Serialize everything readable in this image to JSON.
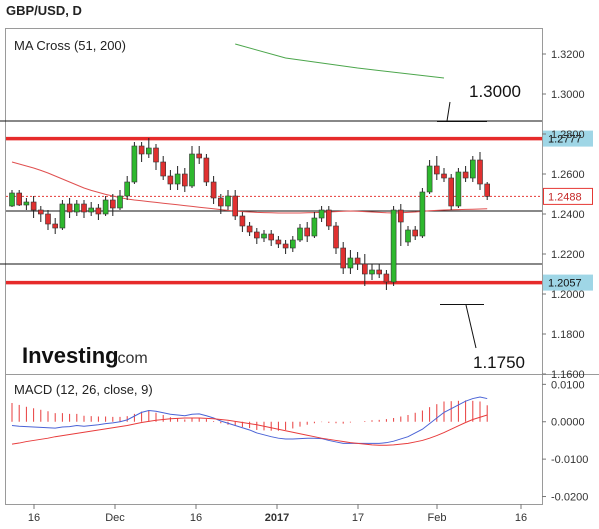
{
  "header": {
    "title": "GBP/USD, D"
  },
  "price_panel": {
    "indicator_label": "MA Cross (51, 200)",
    "logo_text": "Investing",
    "logo_suffix": ".com",
    "ma_label": "",
    "annotations": [
      "1.3000",
      "1.1750"
    ]
  },
  "macd_panel": {
    "label": "MACD (12, 26, close, 9)"
  },
  "colors": {
    "bull": "#2eb82e",
    "bear": "#e03030",
    "resistance_line": "#e62b2b",
    "ma_slow": "#4ca64c",
    "ma_fast": "#e05050",
    "macd_line": "#4a63d6",
    "macd_signal": "#e83c3c",
    "price_tag_bg": "#9fd6e6",
    "current_tag_border": "#e53935"
  },
  "chart_data": [
    {
      "type": "candlestick",
      "title": "GBP/USD, D",
      "x_ticks": [
        "16",
        "Dec",
        "16",
        "2017",
        "17",
        "Feb",
        "16"
      ],
      "y_ticks": [
        "1.3200",
        "1.3000",
        "1.2800",
        "1.2600",
        "1.2400",
        "1.2200",
        "1.2000",
        "1.1800",
        "1.1600"
      ],
      "ylim": [
        1.16,
        1.333
      ],
      "candles": [
        [
          1.244,
          1.2505,
          1.2435,
          1.252
        ],
        [
          1.2505,
          1.2445,
          1.244,
          1.252
        ],
        [
          1.2445,
          1.246,
          1.242,
          1.248
        ],
        [
          1.246,
          1.242,
          1.238,
          1.249
        ],
        [
          1.242,
          1.24,
          1.236,
          1.244
        ],
        [
          1.24,
          1.235,
          1.232,
          1.242
        ],
        [
          1.235,
          1.233,
          1.23,
          1.238
        ],
        [
          1.233,
          1.245,
          1.232,
          1.247
        ],
        [
          1.245,
          1.241,
          1.238,
          1.248
        ],
        [
          1.241,
          1.245,
          1.239,
          1.247
        ],
        [
          1.245,
          1.241,
          1.238,
          1.247
        ],
        [
          1.241,
          1.243,
          1.239,
          1.246
        ],
        [
          1.243,
          1.24,
          1.237,
          1.245
        ],
        [
          1.24,
          1.247,
          1.239,
          1.249
        ],
        [
          1.247,
          1.243,
          1.239,
          1.25
        ],
        [
          1.243,
          1.249,
          1.242,
          1.252
        ],
        [
          1.249,
          1.256,
          1.247,
          1.259
        ],
        [
          1.256,
          1.274,
          1.255,
          1.276
        ],
        [
          1.274,
          1.27,
          1.266,
          1.276
        ],
        [
          1.27,
          1.273,
          1.268,
          1.278
        ],
        [
          1.273,
          1.266,
          1.262,
          1.275
        ],
        [
          1.266,
          1.259,
          1.257,
          1.269
        ],
        [
          1.259,
          1.255,
          1.252,
          1.262
        ],
        [
          1.255,
          1.26,
          1.252,
          1.264
        ],
        [
          1.26,
          1.254,
          1.251,
          1.263
        ],
        [
          1.254,
          1.27,
          1.253,
          1.274
        ],
        [
          1.27,
          1.268,
          1.265,
          1.274
        ],
        [
          1.268,
          1.256,
          1.254,
          1.27
        ],
        [
          1.256,
          1.248,
          1.245,
          1.259
        ],
        [
          1.248,
          1.244,
          1.24,
          1.25
        ],
        [
          1.244,
          1.249,
          1.242,
          1.252
        ],
        [
          1.249,
          1.239,
          1.237,
          1.252
        ],
        [
          1.239,
          1.234,
          1.231,
          1.241
        ],
        [
          1.234,
          1.231,
          1.229,
          1.236
        ],
        [
          1.231,
          1.228,
          1.225,
          1.233
        ],
        [
          1.228,
          1.23,
          1.226,
          1.232
        ],
        [
          1.23,
          1.227,
          1.224,
          1.232
        ],
        [
          1.227,
          1.225,
          1.223,
          1.229
        ],
        [
          1.225,
          1.223,
          1.22,
          1.227
        ],
        [
          1.223,
          1.227,
          1.221,
          1.229
        ],
        [
          1.227,
          1.233,
          1.226,
          1.235
        ],
        [
          1.233,
          1.229,
          1.226,
          1.236
        ],
        [
          1.229,
          1.238,
          1.228,
          1.241
        ],
        [
          1.238,
          1.242,
          1.236,
          1.244
        ],
        [
          1.242,
          1.234,
          1.232,
          1.244
        ],
        [
          1.234,
          1.223,
          1.22,
          1.236
        ],
        [
          1.223,
          1.213,
          1.21,
          1.226
        ],
        [
          1.213,
          1.218,
          1.21,
          1.222
        ],
        [
          1.218,
          1.215,
          1.212,
          1.221
        ],
        [
          1.215,
          1.21,
          1.204,
          1.22
        ],
        [
          1.21,
          1.212,
          1.207,
          1.215
        ],
        [
          1.212,
          1.21,
          1.208,
          1.215
        ],
        [
          1.21,
          1.206,
          1.202,
          1.212
        ],
        [
          1.206,
          1.242,
          1.204,
          1.244
        ],
        [
          1.242,
          1.236,
          1.224,
          1.245
        ],
        [
          1.226,
          1.232,
          1.224,
          1.234
        ],
        [
          1.232,
          1.229,
          1.227,
          1.234
        ],
        [
          1.229,
          1.251,
          1.228,
          1.253
        ],
        [
          1.251,
          1.264,
          1.25,
          1.267
        ],
        [
          1.264,
          1.26,
          1.257,
          1.269
        ],
        [
          1.26,
          1.258,
          1.256,
          1.263
        ],
        [
          1.258,
          1.244,
          1.242,
          1.26
        ],
        [
          1.244,
          1.261,
          1.243,
          1.263
        ],
        [
          1.261,
          1.258,
          1.256,
          1.264
        ],
        [
          1.258,
          1.267,
          1.256,
          1.269
        ],
        [
          1.267,
          1.255,
          1.252,
          1.271
        ],
        [
          1.255,
          1.2488,
          1.247,
          1.256
        ]
      ],
      "ma_fast": [
        1.266,
        1.265,
        1.264,
        1.263,
        1.2618,
        1.2605,
        1.259,
        1.2575,
        1.256,
        1.2545,
        1.253,
        1.2518,
        1.2508,
        1.2498,
        1.249,
        1.2482,
        1.2475,
        1.247,
        1.2466,
        1.2462,
        1.2458,
        1.2454,
        1.245,
        1.2446,
        1.2442,
        1.2438,
        1.2434,
        1.243,
        1.2426,
        1.2422,
        1.2418,
        1.2415,
        1.2412,
        1.241,
        1.2408,
        1.2407,
        1.2406,
        1.2405,
        1.2405,
        1.2405,
        1.2405,
        1.2406,
        1.2407,
        1.2408,
        1.241,
        1.2412,
        1.2414,
        1.2415,
        1.2414,
        1.2412,
        1.241,
        1.2408,
        1.2406,
        1.2405,
        1.2406,
        1.2408,
        1.241,
        1.2413,
        1.2416,
        1.2418,
        1.242,
        1.2421,
        1.2422,
        1.2423,
        1.2424,
        1.2425,
        1.2426
      ],
      "ma_slow": [
        [
          31,
          1.325
        ],
        [
          38,
          1.318
        ],
        [
          48,
          1.313
        ],
        [
          60,
          1.308
        ]
      ],
      "horizontal_levels": [
        {
          "value": 1.2777,
          "label": "1.2777",
          "style": "red-thick"
        },
        {
          "value": 1.2057,
          "label": "1.2057",
          "style": "red-thick"
        },
        {
          "value": 1.2865,
          "label": "",
          "style": "black-thin"
        },
        {
          "value": 1.2415,
          "label": "",
          "style": "black-thin"
        },
        {
          "value": 1.215,
          "label": "",
          "style": "black-thin"
        },
        {
          "value": 1.2488,
          "label": "1.2488",
          "style": "current"
        }
      ]
    },
    {
      "type": "line",
      "title": "MACD (12, 26, close, 9)",
      "y_ticks": [
        "0.0100",
        "0.0000",
        "-0.0100",
        "-0.0200"
      ],
      "ylim": [
        -0.022,
        0.0125
      ],
      "series": [
        {
          "name": "MACD",
          "values": [
            -0.001,
            -0.0012,
            -0.0013,
            -0.0014,
            -0.0015,
            -0.0016,
            -0.0017,
            -0.0014,
            -0.0013,
            -0.001,
            -0.0012,
            -0.001,
            -0.0008,
            -0.0005,
            -0.0003,
            0.0,
            0.0005,
            0.0015,
            0.0025,
            0.003,
            0.0028,
            0.0024,
            0.002,
            0.0018,
            0.0016,
            0.002,
            0.0021,
            0.0016,
            0.001,
            0.0002,
            -0.0004,
            -0.001,
            -0.0016,
            -0.0022,
            -0.003,
            -0.0035,
            -0.004,
            -0.0044,
            -0.0046,
            -0.0046,
            -0.0045,
            -0.0044,
            -0.0044,
            -0.0045,
            -0.005,
            -0.0054,
            -0.0058,
            -0.0058,
            -0.0058,
            -0.0058,
            -0.0058,
            -0.0058,
            -0.0056,
            -0.0052,
            -0.0046,
            -0.004,
            -0.003,
            -0.002,
            -0.0005,
            0.001,
            0.0025,
            0.0035,
            0.0045,
            0.0055,
            0.0062,
            0.0066,
            0.0062
          ]
        },
        {
          "name": "Signal",
          "values": [
            -0.006,
            -0.0057,
            -0.0053,
            -0.005,
            -0.0047,
            -0.0044,
            -0.004,
            -0.0037,
            -0.0034,
            -0.0031,
            -0.0028,
            -0.0025,
            -0.0022,
            -0.0019,
            -0.0016,
            -0.0013,
            -0.001,
            -0.0006,
            -0.0002,
            0.0001,
            0.0004,
            0.0006,
            0.0008,
            0.0009,
            0.001,
            0.001,
            0.001,
            0.0009,
            0.0008,
            0.0006,
            0.0004,
            0.0001,
            -0.0002,
            -0.0005,
            -0.0008,
            -0.0012,
            -0.0016,
            -0.002,
            -0.0024,
            -0.0028,
            -0.0032,
            -0.0036,
            -0.004,
            -0.0044,
            -0.0047,
            -0.005,
            -0.0053,
            -0.0056,
            -0.0058,
            -0.006,
            -0.0062,
            -0.0063,
            -0.0063,
            -0.0062,
            -0.006,
            -0.0058,
            -0.0054,
            -0.005,
            -0.0044,
            -0.0037,
            -0.0029,
            -0.002,
            -0.0011,
            -0.0002,
            0.0006,
            0.0012,
            0.0018
          ]
        }
      ]
    }
  ]
}
